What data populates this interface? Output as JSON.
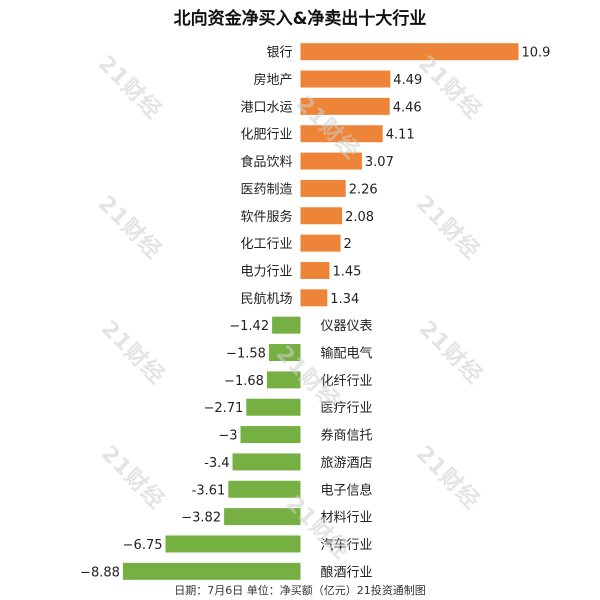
{
  "title": "北向资金净买入&净卖出十大行业",
  "footer": "日期：7月6日 单位：净买额（亿元）21投资通制图",
  "watermark": "21财经",
  "colors": {
    "positive": "#ee8437",
    "negative": "#76b043"
  },
  "chart_data": {
    "type": "bar",
    "orientation": "horizontal",
    "title": "北向资金净买入&净卖出十大行业",
    "categories": [
      "银行",
      "房地产",
      "港口水运",
      "化肥行业",
      "食品饮料",
      "医药制造",
      "软件服务",
      "化工行业",
      "电力行业",
      "民航机场",
      "仪器仪表",
      "输配电气",
      "化纤行业",
      "医疗行业",
      "券商信托",
      "旅游酒店",
      "电子信息",
      "材料行业",
      "汽车行业",
      "酿酒行业"
    ],
    "values": [
      10.9,
      4.49,
      4.46,
      4.11,
      3.07,
      2.26,
      2.08,
      2,
      1.45,
      1.34,
      -1.42,
      -1.58,
      -1.68,
      -2.71,
      -3,
      -3.4,
      -3.61,
      -3.82,
      -6.75,
      -8.88
    ],
    "value_labels": [
      "10.9",
      "4.49",
      "4.46",
      "4.11",
      "3.07",
      "2.26",
      "2.08",
      "2",
      "1.45",
      "1.34",
      "−1.42",
      "−1.58",
      "−1.68",
      "−2.71",
      "−3",
      "-3.4",
      "-3.61",
      "−3.82",
      "−6.75",
      "−8.88"
    ],
    "xlabel": "",
    "ylabel": "",
    "grid": false,
    "legend": "none"
  }
}
